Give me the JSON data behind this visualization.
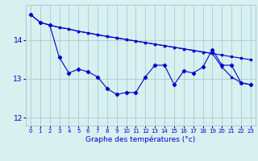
{
  "line1_x": [
    0,
    1,
    2,
    3,
    4,
    5,
    6,
    7,
    8,
    9,
    10,
    11,
    12,
    13,
    14,
    15,
    16,
    17,
    18,
    19,
    20,
    21,
    22,
    23
  ],
  "line1_y": [
    14.65,
    14.45,
    14.38,
    14.32,
    14.28,
    14.22,
    14.18,
    14.13,
    14.09,
    14.05,
    14.01,
    13.97,
    13.93,
    13.89,
    13.85,
    13.81,
    13.77,
    13.73,
    13.69,
    13.65,
    13.61,
    13.57,
    13.53,
    13.49
  ],
  "line2_x": [
    2,
    3,
    4,
    5,
    6,
    7,
    8,
    9,
    10,
    11,
    12,
    13,
    14,
    15,
    16,
    17,
    18,
    19,
    20,
    21,
    22,
    23
  ],
  "line2_y": [
    14.38,
    14.32,
    14.28,
    14.22,
    14.18,
    14.13,
    14.09,
    14.05,
    14.01,
    13.97,
    13.93,
    13.89,
    13.85,
    13.81,
    13.77,
    13.73,
    13.69,
    13.65,
    13.3,
    13.05,
    12.9,
    12.85
  ],
  "line3_x": [
    0,
    1,
    2,
    3,
    4,
    5,
    6,
    7,
    8,
    9,
    10,
    11,
    12,
    13,
    14,
    15,
    16,
    17,
    18,
    19,
    20,
    21,
    22,
    23
  ],
  "line3_y": [
    14.65,
    14.45,
    14.38,
    13.55,
    13.15,
    13.25,
    13.18,
    13.05,
    12.75,
    12.6,
    12.65,
    12.65,
    13.05,
    13.35,
    13.35,
    12.85,
    13.2,
    13.15,
    13.3,
    13.75,
    13.35,
    13.35,
    12.9,
    12.85
  ],
  "line_color": "#0000cc",
  "bg_color": "#d8f0f0",
  "grid_color": "#aacccc",
  "xlabel": "Graphe des températures (°c)",
  "yticks": [
    12,
    13,
    14
  ],
  "xtick_labels": [
    "0",
    "1",
    "2",
    "3",
    "4",
    "5",
    "6",
    "7",
    "8",
    "9",
    "10",
    "11",
    "12",
    "13",
    "14",
    "15",
    "16",
    "17",
    "18",
    "19",
    "20",
    "21",
    "22",
    "23"
  ],
  "ylim": [
    11.8,
    14.9
  ],
  "xlim": [
    -0.5,
    23.5
  ]
}
